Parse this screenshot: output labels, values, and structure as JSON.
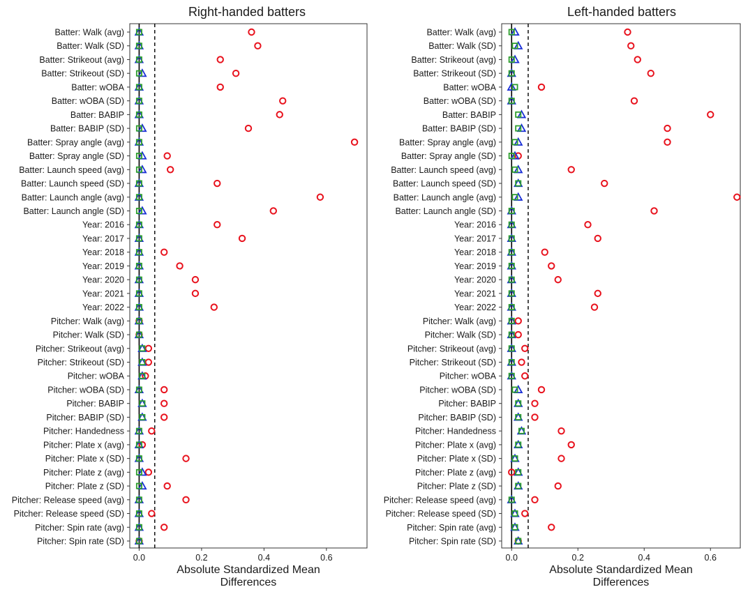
{
  "chart_data": [
    {
      "type": "scatter",
      "title": "Right-handed batters",
      "xlabel_lines": [
        "Absolute Standardized Mean",
        "Differences"
      ],
      "xlim": [
        -0.03,
        0.73
      ],
      "xticks": [
        0.0,
        0.2,
        0.4,
        0.6
      ],
      "xtick_labels": [
        "0.0",
        "0.2",
        "0.4",
        "0.6"
      ],
      "threshold": 0.05,
      "zero_line": 0.0,
      "grid": false,
      "legend": "none",
      "colors": {
        "circle": "#e8121d",
        "triangle": "#1a2fd6",
        "square": "#2e9e2e"
      },
      "categories": [
        "Batter: Walk (avg)",
        "Batter: Walk (SD)",
        "Batter: Strikeout (avg)",
        "Batter: Strikeout (SD)",
        "Batter: wOBA",
        "Batter: wOBA (SD)",
        "Batter: BABIP",
        "Batter: BABIP (SD)",
        "Batter: Spray angle (avg)",
        "Batter: Spray angle (SD)",
        "Batter: Launch speed (avg)",
        "Batter: Launch speed (SD)",
        "Batter: Launch angle (avg)",
        "Batter: Launch angle (SD)",
        "Year: 2016",
        "Year: 2017",
        "Year: 2018",
        "Year: 2019",
        "Year: 2020",
        "Year: 2021",
        "Year: 2022",
        "Pitcher: Walk (avg)",
        "Pitcher: Walk (SD)",
        "Pitcher: Strikeout (avg)",
        "Pitcher: Strikeout (SD)",
        "Pitcher: wOBA",
        "Pitcher: wOBA (SD)",
        "Pitcher: BABIP",
        "Pitcher: BABIP (SD)",
        "Pitcher: Handedness",
        "Pitcher: Plate x (avg)",
        "Pitcher: Plate x (SD)",
        "Pitcher: Plate z (avg)",
        "Pitcher: Plate z (SD)",
        "Pitcher: Release speed (avg)",
        "Pitcher: Release speed (SD)",
        "Pitcher: Spin rate (avg)",
        "Pitcher: Spin rate (SD)"
      ],
      "series": [
        {
          "marker": "circle",
          "values": [
            0.36,
            0.38,
            0.26,
            0.31,
            0.26,
            0.46,
            0.45,
            0.35,
            0.69,
            0.09,
            0.1,
            0.25,
            0.58,
            0.43,
            0.25,
            0.33,
            0.08,
            0.13,
            0.18,
            0.18,
            0.24,
            0.0,
            0.0,
            0.03,
            0.03,
            0.02,
            0.08,
            0.08,
            0.08,
            0.04,
            0.01,
            0.15,
            0.03,
            0.09,
            0.15,
            0.04,
            0.08,
            0.0
          ]
        },
        {
          "marker": "triangle",
          "values": [
            0.0,
            0.0,
            0.0,
            0.01,
            0.0,
            0.0,
            0.0,
            0.01,
            0.0,
            0.01,
            0.01,
            0.0,
            0.0,
            0.01,
            0.0,
            0.0,
            0.0,
            0.0,
            0.0,
            0.0,
            0.0,
            0.0,
            0.0,
            0.01,
            0.01,
            0.01,
            0.0,
            0.01,
            0.01,
            0.0,
            0.0,
            0.0,
            0.01,
            0.01,
            0.0,
            0.0,
            0.0,
            0.0
          ]
        },
        {
          "marker": "square",
          "values": [
            0.0,
            0.0,
            0.0,
            0.0,
            0.0,
            0.0,
            0.0,
            0.0,
            0.0,
            0.0,
            0.0,
            0.0,
            0.0,
            0.0,
            0.0,
            0.0,
            0.0,
            0.0,
            0.0,
            0.0,
            0.0,
            0.0,
            0.0,
            0.01,
            0.01,
            0.01,
            0.0,
            0.01,
            0.01,
            0.0,
            0.0,
            0.0,
            0.0,
            0.0,
            0.0,
            0.0,
            0.0,
            0.0
          ]
        }
      ]
    },
    {
      "type": "scatter",
      "title": "Left-handed batters",
      "xlabel_lines": [
        "Absolute Standardized Mean",
        "Differences"
      ],
      "xlim": [
        -0.03,
        0.69
      ],
      "xticks": [
        0.0,
        0.2,
        0.4,
        0.6
      ],
      "xtick_labels": [
        "0.0",
        "0.2",
        "0.4",
        "0.6"
      ],
      "threshold": 0.05,
      "zero_line": 0.0,
      "grid": false,
      "legend": "none",
      "colors": {
        "circle": "#e8121d",
        "triangle": "#1a2fd6",
        "square": "#2e9e2e"
      },
      "categories": [
        "Batter: Walk (avg)",
        "Batter: Walk (SD)",
        "Batter: Strikeout (avg)",
        "Batter: Strikeout (SD)",
        "Batter: wOBA",
        "Batter: wOBA (SD)",
        "Batter: BABIP",
        "Batter: BABIP (SD)",
        "Batter: Spray angle (avg)",
        "Batter: Spray angle (SD)",
        "Batter: Launch speed (avg)",
        "Batter: Launch speed (SD)",
        "Batter: Launch angle (avg)",
        "Batter: Launch angle (SD)",
        "Year: 2016",
        "Year: 2017",
        "Year: 2018",
        "Year: 2019",
        "Year: 2020",
        "Year: 2021",
        "Year: 2022",
        "Pitcher: Walk (avg)",
        "Pitcher: Walk (SD)",
        "Pitcher: Strikeout (avg)",
        "Pitcher: Strikeout (SD)",
        "Pitcher: wOBA",
        "Pitcher: wOBA (SD)",
        "Pitcher: BABIP",
        "Pitcher: BABIP (SD)",
        "Pitcher: Handedness",
        "Pitcher: Plate x (avg)",
        "Pitcher: Plate x (SD)",
        "Pitcher: Plate z (avg)",
        "Pitcher: Plate z (SD)",
        "Pitcher: Release speed (avg)",
        "Pitcher: Release speed (SD)",
        "Pitcher: Spin rate (avg)",
        "Pitcher: Spin rate (SD)"
      ],
      "series": [
        {
          "marker": "circle",
          "values": [
            0.35,
            0.36,
            0.38,
            0.42,
            0.09,
            0.37,
            0.6,
            0.47,
            0.47,
            0.02,
            0.18,
            0.28,
            0.68,
            0.43,
            0.23,
            0.26,
            0.1,
            0.12,
            0.14,
            0.26,
            0.25,
            0.02,
            0.02,
            0.04,
            0.03,
            0.04,
            0.09,
            0.07,
            0.07,
            0.15,
            0.18,
            0.15,
            0.0,
            0.14,
            0.07,
            0.04,
            0.12,
            0.02
          ]
        },
        {
          "marker": "triangle",
          "values": [
            0.01,
            0.02,
            0.01,
            0.0,
            0.0,
            0.0,
            0.03,
            0.03,
            0.02,
            0.01,
            0.02,
            0.02,
            0.02,
            0.0,
            0.0,
            0.0,
            0.0,
            0.0,
            0.0,
            0.0,
            0.0,
            0.0,
            0.0,
            0.0,
            0.0,
            0.0,
            0.02,
            0.02,
            0.02,
            0.03,
            0.02,
            0.01,
            0.02,
            0.02,
            0.0,
            0.01,
            0.01,
            0.02
          ]
        },
        {
          "marker": "square",
          "values": [
            0.0,
            0.01,
            0.0,
            0.0,
            0.01,
            0.0,
            0.02,
            0.02,
            0.01,
            0.0,
            0.01,
            0.02,
            0.01,
            0.0,
            0.0,
            0.0,
            0.0,
            0.0,
            0.0,
            0.0,
            0.0,
            0.0,
            0.0,
            0.0,
            0.0,
            0.0,
            0.01,
            0.02,
            0.02,
            0.03,
            0.02,
            0.01,
            0.02,
            0.02,
            0.0,
            0.01,
            0.01,
            0.02
          ]
        }
      ]
    }
  ]
}
